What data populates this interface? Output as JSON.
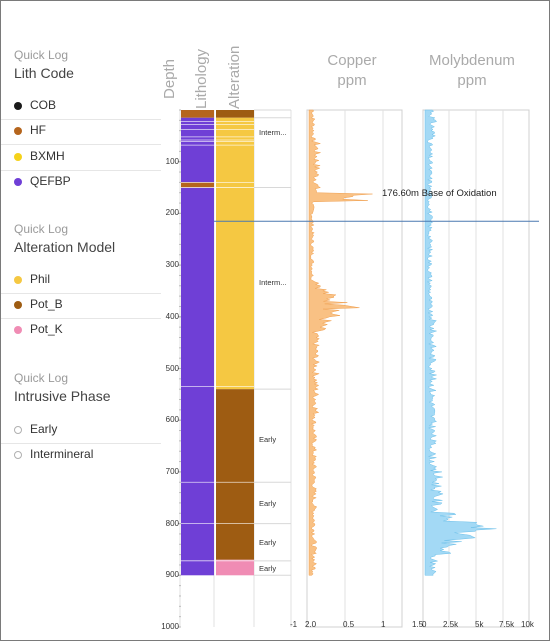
{
  "legend": {
    "sections": [
      {
        "subtitle": "Quick Log",
        "title": "Lith Code",
        "items": [
          {
            "label": "COB",
            "color": "#1a1a1a",
            "icon": "filled-dot"
          },
          {
            "label": "HF",
            "color": "#b5651d",
            "icon": "filled-dot"
          },
          {
            "label": "BXMH",
            "color": "#f5d21a",
            "icon": "filled-dot"
          },
          {
            "label": "QEFBP",
            "color": "#6f3fd6",
            "icon": "filled-dot"
          }
        ]
      },
      {
        "subtitle": "Quick Log",
        "title": "Alteration Model",
        "items": [
          {
            "label": "Phil",
            "color": "#f5c842",
            "icon": "filled-dot"
          },
          {
            "label": "Pot_B",
            "color": "#9e5c12",
            "icon": "filled-dot"
          },
          {
            "label": "Pot_K",
            "color": "#f08cb4",
            "icon": "filled-dot"
          }
        ]
      },
      {
        "subtitle": "Quick Log",
        "title": "Intrusive Phase",
        "items": [
          {
            "label": "Early",
            "color": "#ffffff",
            "icon": "hollow-dot"
          },
          {
            "label": "Intermineral",
            "color": "#ffffff",
            "icon": "hollow-dot"
          }
        ]
      }
    ]
  },
  "log": {
    "headers": {
      "depth": "Depth",
      "lithology": "Lithology",
      "alteration": "Alteration",
      "copper": "Copper\nppm",
      "molybdenum": "Molybdenum\nppm"
    },
    "depth_ticks": [
      "100",
      "200",
      "300",
      "400",
      "500",
      "600",
      "700",
      "800",
      "900",
      "1000"
    ],
    "depth_tick_values": [
      100,
      200,
      300,
      400,
      500,
      600,
      700,
      800,
      900,
      1000
    ],
    "depth_range": [
      0,
      1000
    ],
    "copper_axis_labels": [
      "-1",
      "2.0",
      "0.5",
      "1"
    ],
    "moly_axis_labels": [
      "1.5",
      "0",
      "2.5k",
      "5k",
      "7.5k",
      "10k"
    ],
    "annotation": "176.60m Base of Oxidation",
    "annotation_depth": 176.6,
    "lithology_intervals": [
      {
        "from": 0,
        "to": 15,
        "code": "HF"
      },
      {
        "from": 15,
        "to": 140,
        "code": "QEFBP"
      },
      {
        "from": 140,
        "to": 150,
        "code": "HF"
      },
      {
        "from": 150,
        "to": 900,
        "code": "QEFBP"
      }
    ],
    "alteration_intervals": [
      {
        "from": 0,
        "to": 15,
        "code": "Pot_B"
      },
      {
        "from": 15,
        "to": 540,
        "code": "Phil"
      },
      {
        "from": 540,
        "to": 870,
        "code": "Pot_B"
      },
      {
        "from": 870,
        "to": 900,
        "code": "Pot_K"
      }
    ],
    "phase_labels": [
      {
        "text": "Interm...",
        "depth": 45
      },
      {
        "text": "Interm...",
        "depth": 335
      },
      {
        "text": "Early",
        "depth": 638
      },
      {
        "text": "Early",
        "depth": 762
      },
      {
        "text": "Early",
        "depth": 838
      },
      {
        "text": "Early",
        "depth": 888
      }
    ],
    "colors": {
      "copper_fill": "#f9c184",
      "copper_line": "#f0a050",
      "moly_fill": "#a3d9f5",
      "moly_line": "#6cc0ea",
      "oxidation_line": "#4a78b0"
    }
  }
}
